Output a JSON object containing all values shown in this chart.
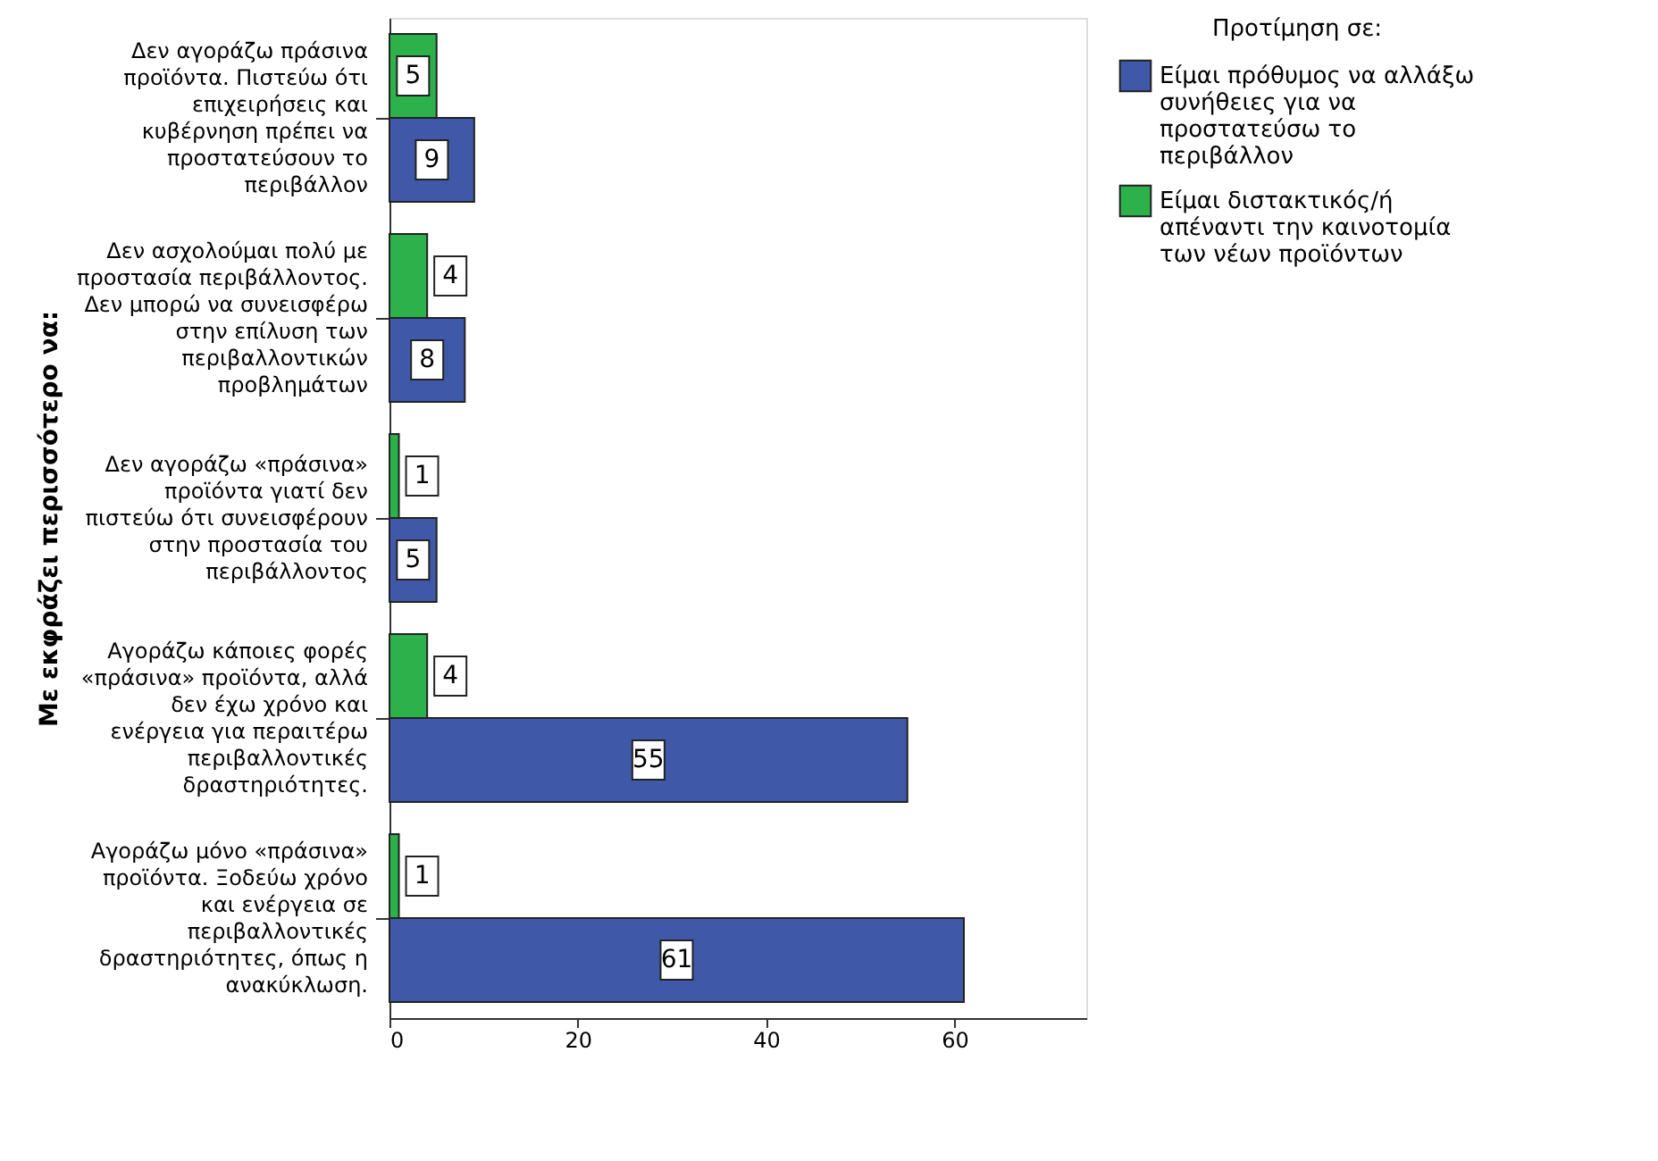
{
  "chart_data": {
    "type": "bar",
    "orientation": "horizontal",
    "ylabel": "Με εκφράζει περισσότερο να:",
    "legend_title": "Προτίμηση σε:",
    "categories": [
      "Δεν αγοράζω πράσινα προϊόντα. Πιστεύω ότι επιχειρήσεις και κυβέρνηση πρέπει να προστατεύσουν το περιβάλλον",
      "Δεν ασχολούμαι πολύ με προστασία περιβάλλοντος. Δεν μπορώ να συνεισφέρω στην επίλυση των περιβαλλοντικών προβλημάτων",
      "Δεν αγοράζω «πράσινα» προϊόντα γιατί δεν πιστεύω ότι συνεισφέρουν στην προστασία του περιβάλλοντος",
      "Αγοράζω κάποιες φορές «πράσινα» προϊόντα, αλλά δεν έχω χρόνο και ενέργεια για περαιτέρω περιβαλλοντικές δραστηριότητες.",
      "Αγοράζω μόνο «πράσινα» προϊόντα. Ξοδεύω χρόνο και ενέργεια σε περιβαλλοντικές δραστηριότητες, όπως η ανακύκλωση."
    ],
    "series": [
      {
        "name": "Είμαι διστακτικός/ή απέναντι την καινοτομία των νέων προϊόντων",
        "color": "#2db14a",
        "values": [
          5,
          4,
          1,
          4,
          1
        ]
      },
      {
        "name": "Είμαι πρόθυμος να αλλάξω συνήθειες για να προστατεύσω το περιβάλλον",
        "color": "#3f59a8",
        "values": [
          9,
          8,
          5,
          55,
          61
        ]
      }
    ],
    "xlim": [
      0,
      74
    ],
    "xticks": [
      0,
      20,
      40,
      60
    ],
    "data_labels": true,
    "legend": "right",
    "grid": false
  }
}
